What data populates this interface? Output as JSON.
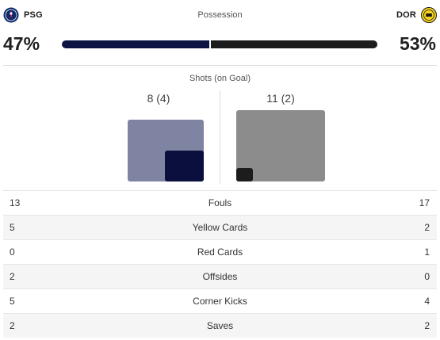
{
  "home": {
    "abbr": "PSG",
    "possession_pct": 47,
    "possession_label": "47%",
    "shots_label": "8 (4)",
    "shots_total": 8,
    "shots_on_goal": 4,
    "color": "#0d1444"
  },
  "away": {
    "abbr": "DOR",
    "possession_pct": 53,
    "possession_label": "53%",
    "shots_label": "11 (2)",
    "shots_total": 11,
    "shots_on_goal": 2,
    "color": "#1c1c1c"
  },
  "possession_title": "Possession",
  "shots_title": "Shots (on Goal)",
  "stats": [
    {
      "name": "Fouls",
      "home": "13",
      "away": "17"
    },
    {
      "name": "Yellow Cards",
      "home": "5",
      "away": "2"
    },
    {
      "name": "Red Cards",
      "home": "0",
      "away": "1"
    },
    {
      "name": "Offsides",
      "home": "2",
      "away": "0"
    },
    {
      "name": "Corner Kicks",
      "home": "5",
      "away": "4"
    },
    {
      "name": "Saves",
      "home": "2",
      "away": "2"
    }
  ]
}
